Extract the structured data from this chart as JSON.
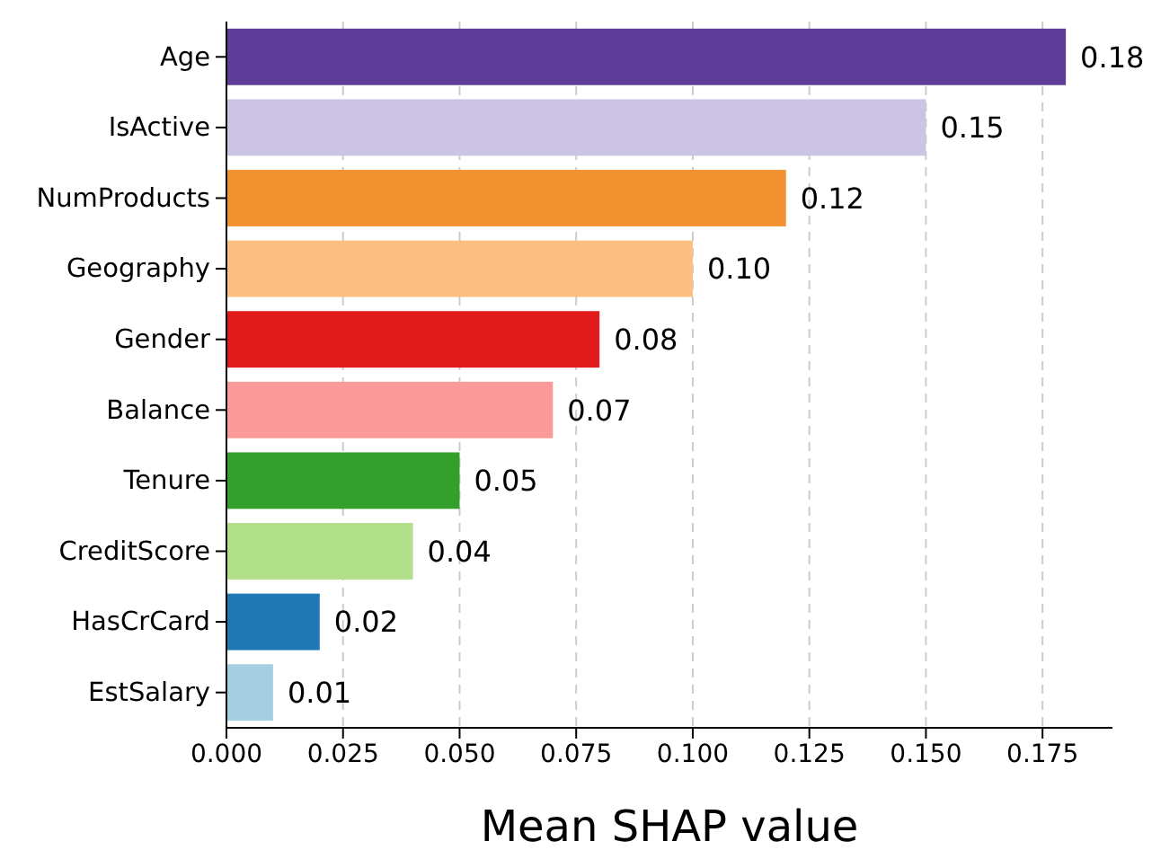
{
  "chart_data": {
    "type": "bar",
    "orientation": "horizontal",
    "xlabel": "Mean SHAP value",
    "categories": [
      "Age",
      "IsActive",
      "NumProducts",
      "Geography",
      "Gender",
      "Balance",
      "Tenure",
      "CreditScore",
      "HasCrCard",
      "EstSalary"
    ],
    "values": [
      0.18,
      0.15,
      0.12,
      0.1,
      0.08,
      0.07,
      0.05,
      0.04,
      0.02,
      0.01
    ],
    "value_labels": [
      "0.18",
      "0.15",
      "0.12",
      "0.10",
      "0.08",
      "0.07",
      "0.05",
      "0.04",
      "0.02",
      "0.01"
    ],
    "colors": [
      "#5e3c99",
      "#cbc4e4",
      "#f39130",
      "#fdbf7f",
      "#e31a1c",
      "#fb9a99",
      "#33a02c",
      "#b2df8a",
      "#1f78b4",
      "#a6cee3"
    ],
    "xlim": [
      0,
      0.19
    ],
    "xticks": [
      {
        "value": 0,
        "label": "0.000"
      },
      {
        "value": 0.025,
        "label": "0.025"
      },
      {
        "value": 0.05,
        "label": "0.050"
      },
      {
        "value": 0.075,
        "label": "0.075"
      },
      {
        "value": 0.1,
        "label": "0.100"
      },
      {
        "value": 0.125,
        "label": "0.125"
      },
      {
        "value": 0.15,
        "label": "0.150"
      },
      {
        "value": 0.175,
        "label": "0.175"
      }
    ],
    "grid": "x"
  }
}
